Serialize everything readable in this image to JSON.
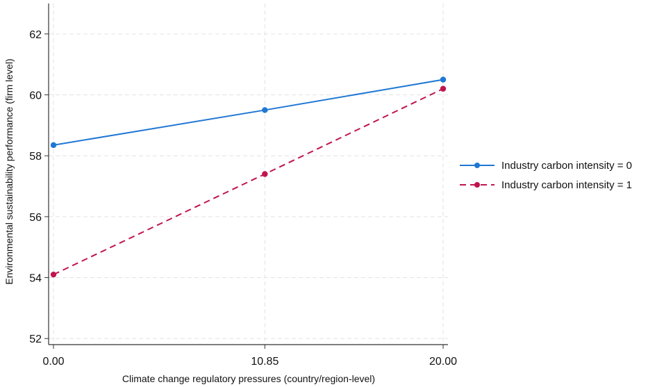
{
  "chart_data": {
    "type": "line",
    "title": "",
    "xlabel": "Climate change regulatory pressures (country/region-level)",
    "ylabel": "Environmental sustainability performance (firm level)",
    "x": [
      0.0,
      10.85,
      20.0
    ],
    "x_tick_labels": [
      "0.00",
      "10.85",
      "20.00"
    ],
    "xlim": [
      -0.25,
      20.25
    ],
    "y_ticks": [
      52,
      54,
      56,
      58,
      60,
      62
    ],
    "y_tick_labels": [
      "52",
      "54",
      "56",
      "58",
      "60",
      "62"
    ],
    "ylim": [
      51.8,
      63.0
    ],
    "grid": true,
    "legend_position": "right",
    "series": [
      {
        "name": "Industry carbon intensity = 0",
        "values": [
          58.35,
          59.5,
          60.5
        ],
        "color": "#1f77d4",
        "line_style": "solid"
      },
      {
        "name": "Industry carbon intensity = 1",
        "values": [
          54.1,
          57.4,
          60.2
        ],
        "color": "#c0144f",
        "line_style": "dashed"
      }
    ]
  }
}
